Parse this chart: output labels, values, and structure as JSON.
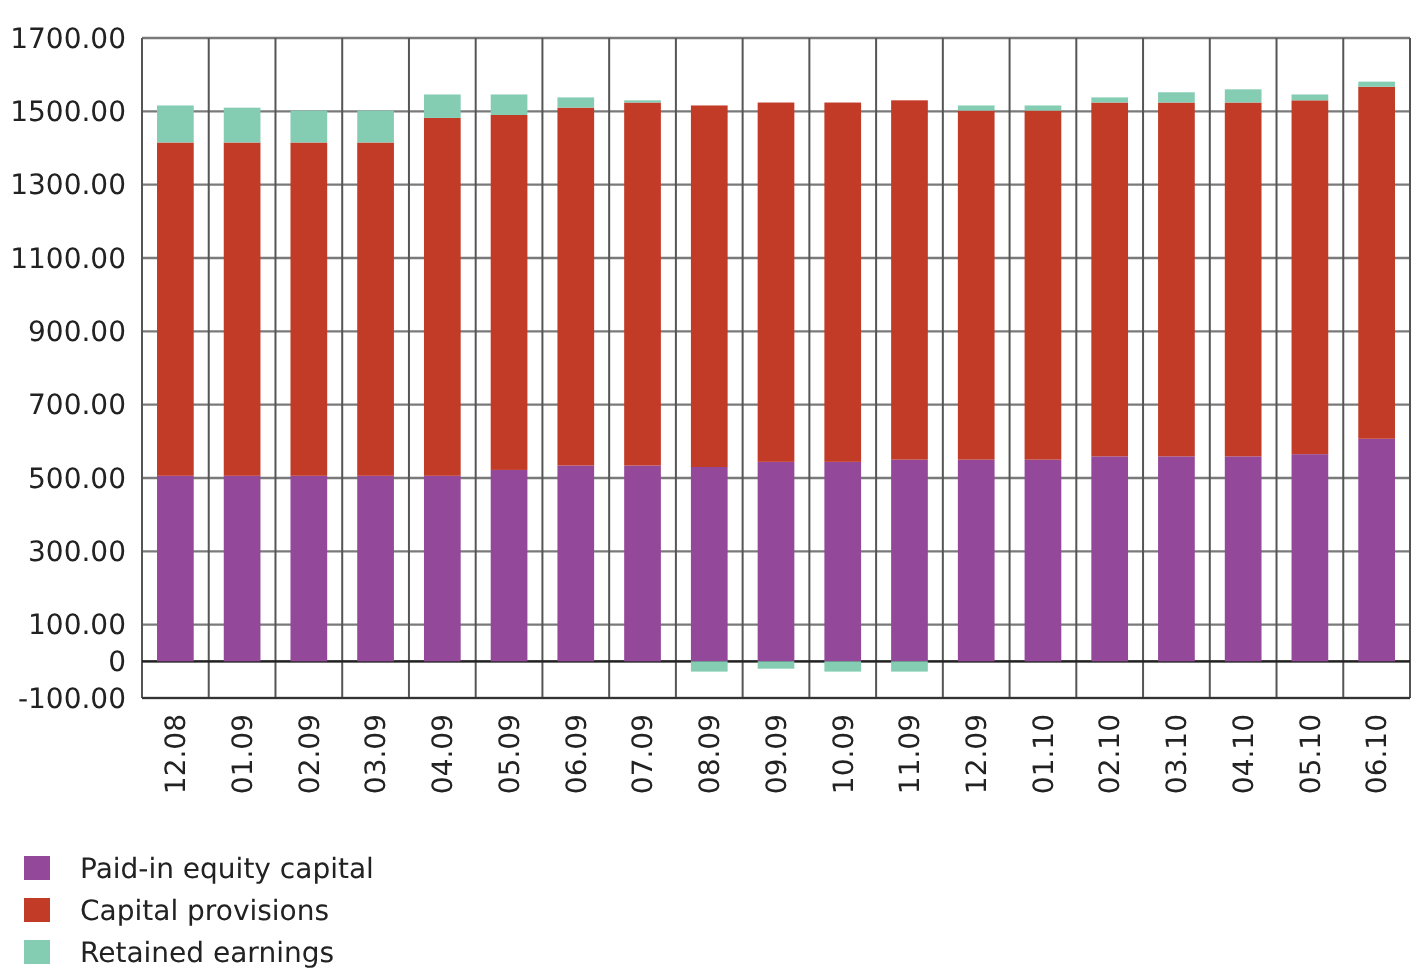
{
  "chart_data": {
    "type": "bar",
    "stacked": true,
    "categories": [
      "12.08",
      "01.09",
      "02.09",
      "03.09",
      "04.09",
      "05.09",
      "06.09",
      "07.09",
      "08.09",
      "09.09",
      "10.09",
      "11.09",
      "12.09",
      "01.10",
      "02.10",
      "03.10",
      "04.10",
      "05.10",
      "06.10"
    ],
    "series": [
      {
        "name": "Paid-in equity capital",
        "color": "#93489a",
        "values": [
          506,
          506,
          506,
          506,
          506,
          522,
          534,
          534,
          530,
          544,
          544,
          550,
          550,
          550,
          559,
          559,
          559,
          565,
          607
        ]
      },
      {
        "name": "Capital provisions",
        "color": "#c13b27",
        "values": [
          909,
          909,
          909,
          909,
          976,
          968,
          976,
          990,
          986,
          980,
          980,
          980,
          952,
          952,
          965,
          965,
          965,
          965,
          960
        ]
      },
      {
        "name": "Retained earnings",
        "color": "#84cdb3",
        "values": [
          101,
          95,
          87,
          87,
          64,
          56,
          28,
          6,
          -28,
          -20,
          -28,
          -28,
          14,
          14,
          14,
          28,
          36,
          16,
          14
        ]
      }
    ],
    "ylim": [
      -100,
      1700
    ],
    "yticks": [
      {
        "value": -100,
        "label": "-100.00"
      },
      0,
      {
        "value": 100,
        "label": "100.00"
      },
      {
        "value": 300,
        "label": "300.00"
      },
      {
        "value": 500,
        "label": "500.00"
      },
      {
        "value": 700,
        "label": "700.00"
      },
      {
        "value": 900,
        "label": "900.00"
      },
      {
        "value": 1100,
        "label": "1100.00"
      },
      {
        "value": 1300,
        "label": "1300.00"
      },
      {
        "value": 1500,
        "label": "1500.00"
      },
      {
        "value": 1700,
        "label": "1700.00"
      }
    ],
    "grid": true,
    "legend": "bottom left"
  }
}
